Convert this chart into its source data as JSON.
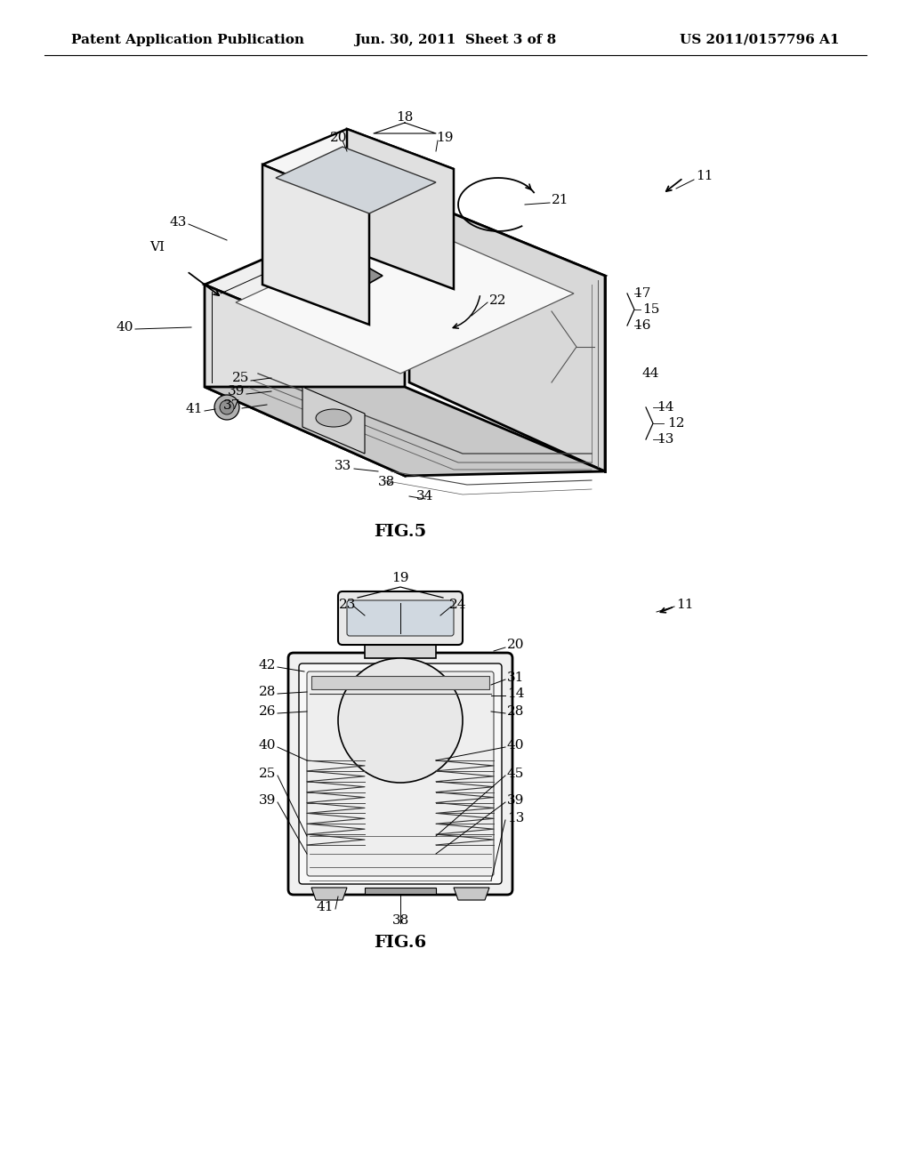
{
  "background_color": "#ffffff",
  "header_left": "Patent Application Publication",
  "header_center": "Jun. 30, 2011  Sheet 3 of 8",
  "header_right": "US 2011/0157796 A1",
  "fig5_label": "FIG.5",
  "fig6_label": "FIG.6",
  "header_font_size": 11,
  "label_font_size": 14,
  "ref_font_size": 11
}
